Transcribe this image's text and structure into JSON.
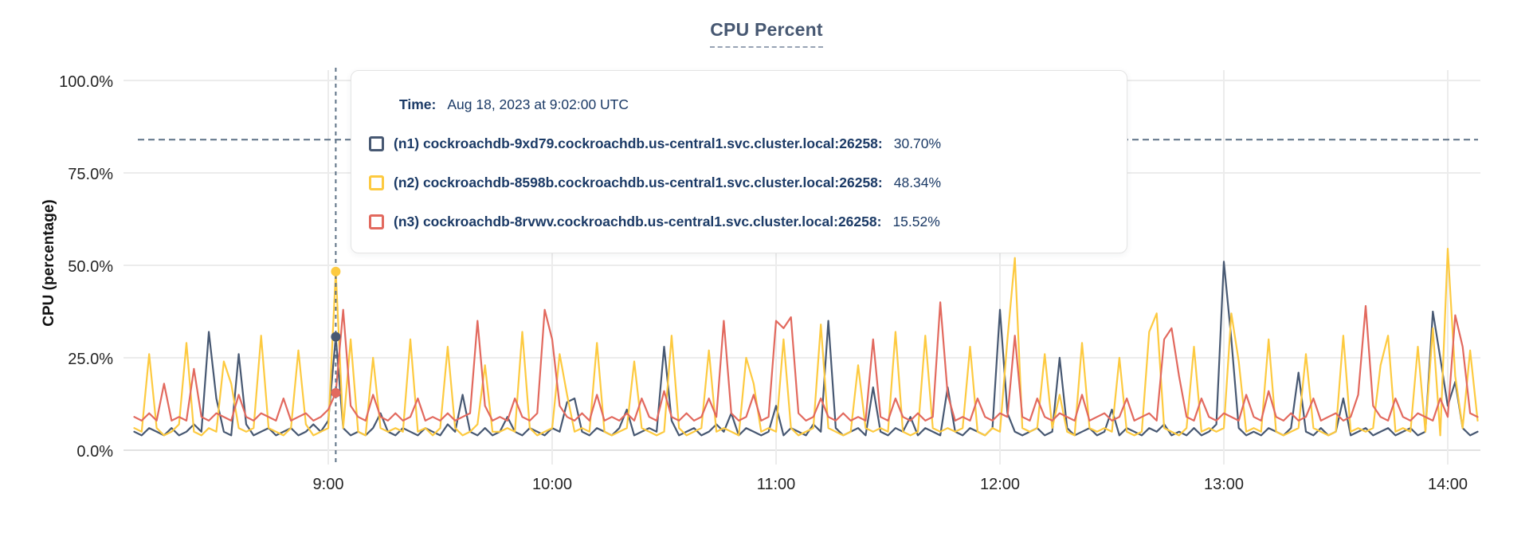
{
  "tooltip": {
    "time_label": "Time:",
    "time_value": "Aug 18, 2023 at 9:02:00 UTC",
    "rows": [
      {
        "series": "n1",
        "label": "(n1) cockroachdb-9xd79.cockroachdb.us-central1.svc.cluster.local:26258:",
        "value": "30.70%"
      },
      {
        "series": "n2",
        "label": "(n2) cockroachdb-8598b.cockroachdb.us-central1.svc.cluster.local:26258:",
        "value": "48.34%"
      },
      {
        "series": "n3",
        "label": "(n3) cockroachdb-8rvwv.cockroachdb.us-central1.svc.cluster.local:26258:",
        "value": "15.52%"
      }
    ]
  },
  "colors": {
    "title": "#475872",
    "tooltip_text": "#1b3a66",
    "grid": "#ececec",
    "dashed_guides": "#5d7186",
    "axis_text": "#242424"
  },
  "chart_data": {
    "type": "line",
    "title": "CPU Percent",
    "xlabel": "",
    "ylabel": "CPU (percentage)",
    "ylim": [
      0,
      100
    ],
    "grid": true,
    "y_ticks": [
      {
        "value": 0,
        "label": "0.0%"
      },
      {
        "value": 25,
        "label": "25.0%"
      },
      {
        "value": 50,
        "label": "50.0%"
      },
      {
        "value": 75,
        "label": "75.0%"
      },
      {
        "value": 100,
        "label": "100.0%"
      }
    ],
    "x_ticks": [
      {
        "minute": 540,
        "label": "9:00"
      },
      {
        "minute": 600,
        "label": "10:00"
      },
      {
        "minute": 660,
        "label": "11:00"
      },
      {
        "minute": 720,
        "label": "12:00"
      },
      {
        "minute": 780,
        "label": "13:00"
      },
      {
        "minute": 840,
        "label": "14:00"
      }
    ],
    "threshold": {
      "value": 84
    },
    "start_minute": 488,
    "step_minutes": 2,
    "hover": {
      "minute": 542,
      "time_label": "Aug 18, 2023 at 9:02:00 UTC",
      "points": [
        {
          "series": "n1",
          "value": 30.7
        },
        {
          "series": "n2",
          "value": 48.34
        },
        {
          "series": "n3",
          "value": 15.52
        }
      ]
    },
    "series": [
      {
        "id": "n1",
        "name": "cockroachdb-9xd79.cockroachdb.us-central1.svc.cluster.local:26258",
        "color": "#475872",
        "values": [
          5,
          4,
          6,
          5,
          4,
          6,
          4,
          5,
          7,
          5,
          32,
          14,
          5,
          4,
          26,
          7,
          4,
          5,
          6,
          4,
          5,
          6,
          4,
          5,
          7,
          5,
          8,
          30.7,
          6,
          4,
          5,
          4,
          6,
          10,
          5,
          4,
          6,
          5,
          4,
          6,
          5,
          4,
          7,
          5,
          15,
          5,
          4,
          6,
          4,
          5,
          9,
          5,
          4,
          6,
          5,
          4,
          6,
          5,
          13,
          14,
          5,
          4,
          6,
          5,
          4,
          6,
          11,
          4,
          5,
          6,
          5,
          28,
          8,
          4,
          5,
          6,
          4,
          5,
          7,
          5,
          10,
          4,
          6,
          5,
          4,
          5,
          12,
          4,
          6,
          5,
          4,
          7,
          5,
          35,
          6,
          4,
          5,
          6,
          4,
          17,
          5,
          4,
          6,
          5,
          9,
          4,
          6,
          5,
          4,
          17,
          5,
          4,
          6,
          5,
          4,
          6,
          38,
          10,
          5,
          4,
          5,
          6,
          4,
          5,
          25,
          6,
          4,
          5,
          6,
          4,
          5,
          11,
          4,
          6,
          5,
          4,
          6,
          5,
          7,
          4,
          5,
          4,
          6,
          4,
          5,
          7,
          51,
          30,
          6,
          4,
          5,
          4,
          6,
          5,
          4,
          6,
          21,
          5,
          4,
          6,
          4,
          5,
          14,
          4,
          5,
          6,
          4,
          5,
          6,
          4,
          5,
          6,
          4,
          5,
          37.5,
          25,
          12,
          18.5,
          6,
          4,
          5
        ]
      },
      {
        "id": "n2",
        "name": "cockroachdb-8598b.cockroachdb.us-central1.svc.cluster.local:26258",
        "color": "#fdca40",
        "values": [
          6,
          5,
          26,
          6,
          4,
          5,
          7,
          29,
          5,
          4,
          6,
          5,
          24,
          18,
          6,
          5,
          6,
          31,
          6,
          5,
          4,
          6,
          27,
          7,
          4,
          5,
          6,
          48.34,
          6,
          30,
          5,
          4,
          25,
          6,
          5,
          6,
          5,
          30,
          5,
          6,
          4,
          6,
          28,
          6,
          4,
          5,
          7,
          23,
          5,
          5,
          6,
          5,
          32,
          6,
          4,
          5,
          6,
          26,
          15,
          5,
          6,
          5,
          29,
          5,
          4,
          5,
          6,
          24,
          6,
          5,
          4,
          5,
          31,
          6,
          4,
          5,
          6,
          27,
          5,
          6,
          5,
          4,
          25,
          18,
          5,
          6,
          5,
          30,
          6,
          4,
          5,
          6,
          34,
          6,
          5,
          4,
          5,
          23,
          6,
          5,
          6,
          5,
          32,
          5,
          4,
          5,
          31,
          6,
          5,
          6,
          5,
          6,
          28,
          5,
          4,
          6,
          5,
          30,
          52,
          6,
          5,
          6,
          26,
          6,
          15,
          5,
          4,
          29,
          6,
          5,
          6,
          5,
          25,
          5,
          4,
          5,
          32,
          37,
          6,
          5,
          4,
          6,
          28,
          5,
          6,
          5,
          6,
          37,
          24,
          5,
          6,
          5,
          30,
          5,
          4,
          5,
          6,
          26,
          6,
          5,
          4,
          5,
          31,
          5,
          6,
          5,
          6,
          23,
          31,
          5,
          6,
          5,
          28,
          5,
          33,
          4,
          54.5,
          20,
          6,
          27,
          8
        ]
      },
      {
        "id": "n3",
        "name": "cockroachdb-8rvwv.cockroachdb.us-central1.svc.cluster.local:26258",
        "color": "#e2695e",
        "values": [
          9,
          8,
          10,
          8,
          18,
          8,
          9,
          8,
          22,
          9,
          8,
          10,
          9,
          8,
          15,
          9,
          8,
          10,
          9,
          8,
          14,
          8,
          9,
          10,
          8,
          9,
          11,
          15.52,
          38,
          12,
          9,
          8,
          15,
          9,
          8,
          10,
          8,
          9,
          14,
          8,
          9,
          8,
          10,
          8,
          9,
          10,
          35,
          12,
          8,
          9,
          8,
          14,
          9,
          8,
          10,
          38,
          30,
          12,
          9,
          8,
          10,
          8,
          15,
          8,
          9,
          8,
          10,
          8,
          14,
          9,
          8,
          16,
          9,
          8,
          10,
          8,
          9,
          14,
          9,
          35,
          10,
          8,
          9,
          15,
          8,
          9,
          35,
          33,
          36,
          10,
          8,
          9,
          14,
          9,
          8,
          10,
          8,
          9,
          8,
          30,
          9,
          8,
          14,
          9,
          8,
          10,
          8,
          9,
          40,
          15,
          8,
          9,
          8,
          14,
          9,
          8,
          10,
          9,
          31,
          9,
          8,
          14,
          9,
          8,
          10,
          9,
          8,
          15,
          8,
          9,
          10,
          8,
          9,
          14,
          8,
          9,
          10,
          8,
          30,
          33,
          20,
          9,
          8,
          14,
          9,
          8,
          10,
          9,
          8,
          15,
          9,
          8,
          16,
          9,
          8,
          10,
          8,
          9,
          14,
          8,
          9,
          10,
          8,
          9,
          15,
          39,
          12,
          9,
          8,
          14,
          9,
          8,
          10,
          9,
          8,
          14,
          9,
          36.5,
          28,
          10,
          9
        ]
      }
    ]
  }
}
